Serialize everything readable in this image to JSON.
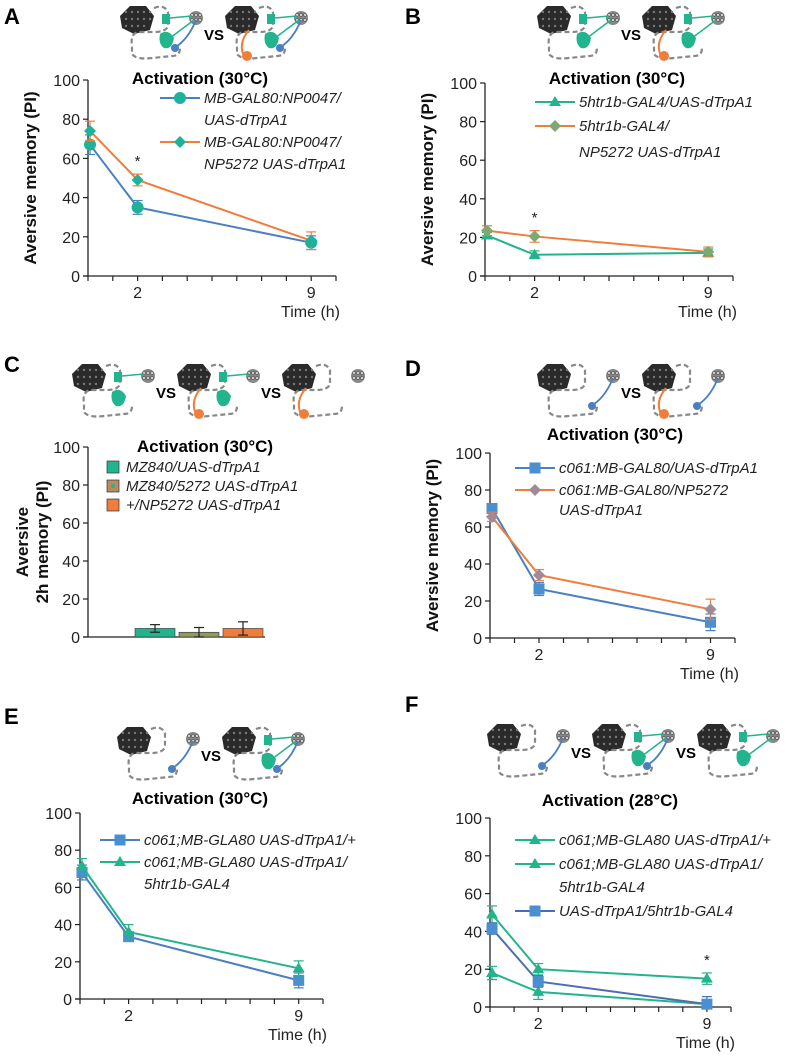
{
  "figure": {
    "colors": {
      "blue": "#4a7fc1",
      "orange": "#ef7d3c",
      "teal": "#22b48c",
      "tealMarker": "#1fb29a",
      "gray": "#888888",
      "axis": "#222222"
    },
    "vs_label": "VS"
  },
  "chart_data": [
    {
      "panel": "A",
      "type": "line",
      "title": "Activation (30°C)",
      "xlabel": "Time (h)",
      "ylabel": "Aversive memory (PI)",
      "ylim": [
        0,
        100
      ],
      "yticks": [
        0,
        20,
        40,
        60,
        80,
        100
      ],
      "xlim": [
        0,
        10
      ],
      "xticks": [
        2,
        9
      ],
      "x": [
        0,
        2,
        9
      ],
      "legend": "top-right",
      "schematic_count": 2,
      "series": [
        {
          "name": "MB-GAL80:NP0047/ UAS-dTrpA1",
          "legend_lines": [
            "MB-GAL80:NP0047/",
            "UAS-dTrpA1"
          ],
          "color": "#4a7fc1",
          "marker": "circle",
          "marker_color": "#1fb29a",
          "values": [
            67,
            35,
            17
          ],
          "errors": [
            5,
            3.5,
            3.5
          ]
        },
        {
          "name": "MB-GAL80:NP0047/ NP5272 UAS-dTrpA1",
          "legend_lines": [
            "MB-GAL80:NP0047/",
            "NP5272 UAS-dTrpA1"
          ],
          "color": "#ef7d3c",
          "marker": "diamond",
          "marker_color": "#1fb29a",
          "values": [
            74,
            49,
            18
          ],
          "errors": [
            5,
            3,
            4.5
          ]
        }
      ],
      "annotations": [
        {
          "x": 2,
          "text": "*"
        }
      ]
    },
    {
      "panel": "B",
      "type": "line",
      "title": "Activation (30°C)",
      "xlabel": "Time (h)",
      "ylabel": "Aversive memory (PI)",
      "ylim": [
        0,
        100
      ],
      "yticks": [
        0,
        20,
        40,
        60,
        80,
        100
      ],
      "xlim": [
        0,
        10
      ],
      "xticks": [
        2,
        9
      ],
      "x": [
        0,
        2,
        9
      ],
      "legend": "top-right",
      "schematic_count": 2,
      "series": [
        {
          "name": "5htr1b-GAL4/UAS-dTrpA1",
          "legend_lines": [
            "5htr1b-GAL4/UAS-dTrpA1"
          ],
          "color": "#22b48c",
          "marker": "triangle",
          "marker_color": "#22b48c",
          "values": [
            21,
            11,
            12
          ],
          "errors": [
            1.5,
            2,
            2
          ]
        },
        {
          "name": "5htr1b-GAL4/ NP5272 UAS-dTrpA1",
          "legend_lines": [
            "5htr1b-GAL4/",
            "NP5272 UAS-dTrpA1"
          ],
          "color": "#ef7d3c",
          "marker": "diamond",
          "marker_color": "#7fa870",
          "values": [
            23.5,
            20.5,
            12.5
          ],
          "errors": [
            2.5,
            3,
            2.5
          ]
        }
      ],
      "annotations": [
        {
          "x": 2,
          "text": "*"
        }
      ]
    },
    {
      "panel": "C",
      "type": "bar",
      "title": "Activation (30°C)",
      "ylabel": "Aversive 2h memory (PI)",
      "ylabel_lines": [
        "Aversive",
        "2h memory (PI)"
      ],
      "ylim": [
        0,
        100
      ],
      "yticks": [
        0,
        20,
        40,
        60,
        80,
        100
      ],
      "legend": "top",
      "schematic_count": 3,
      "categories": [
        "MZ840/UAS-dTrpA1",
        "MZ840/5272 UAS-dTrpA1",
        "+/NP5272 UAS-dTrpA1"
      ],
      "values": [
        4.5,
        2.5,
        4.5
      ],
      "errors": [
        2,
        2.5,
        3.5
      ],
      "colors": [
        "#22b48c",
        "#8f9a62",
        "#ef7d3c"
      ],
      "legend_entries": [
        {
          "label": "MZ840/UAS-dTrpA1",
          "color": "#22b48c"
        },
        {
          "label": "MZ840/5272 UAS-dTrpA1",
          "color": "#b88a5c"
        },
        {
          "label": "+/NP5272 UAS-dTrpA1",
          "color": "#ef7d3c"
        }
      ]
    },
    {
      "panel": "D",
      "type": "line",
      "title": "Activation (30°C)",
      "xlabel": "Time (h)",
      "ylabel": "Aversive memory (PI)",
      "ylim": [
        0,
        100
      ],
      "yticks": [
        0,
        20,
        40,
        60,
        80,
        100
      ],
      "xlim": [
        0,
        10
      ],
      "xticks": [
        2,
        9
      ],
      "x": [
        0,
        2,
        9
      ],
      "legend": "top-right",
      "schematic_count": 2,
      "series": [
        {
          "name": "c061:MB-GAL80/UAS-dTrpA1",
          "legend_lines": [
            "c061:MB-GAL80/UAS-dTrpA1"
          ],
          "color": "#4a7fc1",
          "marker": "square",
          "marker_color": "#4a8fd0",
          "values": [
            70,
            26.5,
            8.5
          ],
          "errors": [
            2.5,
            3.5,
            4.5
          ]
        },
        {
          "name": "c061:MB-GAL80/NP5272 UAS-dTrpA1",
          "legend_lines": [
            "c061:MB-GAL80/NP5272",
            "UAS-dTrpA1"
          ],
          "color": "#ef7d3c",
          "marker": "diamond",
          "marker_color": "#a08a96",
          "values": [
            65.5,
            34,
            15.5
          ],
          "errors": [
            2.5,
            3,
            5.5
          ]
        }
      ],
      "annotations": []
    },
    {
      "panel": "E",
      "type": "line",
      "title": "Activation (30°C)",
      "xlabel": "Time (h)",
      "ylabel": "",
      "ylim": [
        0,
        100
      ],
      "yticks": [
        0,
        20,
        40,
        60,
        80,
        100
      ],
      "xlim": [
        0,
        10
      ],
      "xticks": [
        2,
        9
      ],
      "x": [
        0,
        2,
        9
      ],
      "legend": "top-right",
      "schematic_count": 2,
      "series": [
        {
          "name": "c061;MB-GLA80 UAS-dTrpA1/+",
          "legend_lines": [
            "c061;MB-GLA80 UAS-dTrpA1/+"
          ],
          "color": "#4a7fc1",
          "marker": "square",
          "marker_color": "#4a8fd0",
          "values": [
            68,
            33.5,
            10
          ],
          "errors": [
            4,
            2.5,
            4
          ]
        },
        {
          "name": "c061;MB-GLA80 UAS-dTrpA1/ 5htr1b-GAL4",
          "legend_lines": [
            "c061;MB-GLA80 UAS-dTrpA1/",
            "5htr1b-GAL4"
          ],
          "color": "#22b48c",
          "marker": "triangle",
          "marker_color": "#22b48c",
          "values": [
            71.5,
            36,
            16.5
          ],
          "errors": [
            4,
            4,
            4
          ]
        }
      ],
      "annotations": []
    },
    {
      "panel": "F",
      "type": "line",
      "title": "Activation (28°C)",
      "xlabel": "Time (h)",
      "ylabel": "",
      "ylim": [
        0,
        100
      ],
      "yticks": [
        0,
        20,
        40,
        60,
        80,
        100
      ],
      "xlim": [
        0,
        10
      ],
      "xticks": [
        2,
        9
      ],
      "x": [
        0,
        2,
        9
      ],
      "legend": "top-right",
      "schematic_count": 3,
      "series": [
        {
          "name": "c061;MB-GLA80 UAS-dTrpA1/+",
          "legend_lines": [
            "c061;MB-GLA80 UAS-dTrpA1/+"
          ],
          "color": "#22b48c",
          "marker": "triangle",
          "marker_color": "#22b48c",
          "values": [
            18,
            8,
            1.5
          ],
          "errors": [
            3.5,
            4,
            2
          ]
        },
        {
          "name": "c061;MB-GLA80 UAS-dTrpA1/ 5htr1b-GAL4",
          "legend_lines": [
            "c061;MB-GLA80 UAS-dTrpA1/",
            "5htr1b-GAL4"
          ],
          "color": "#22b48c",
          "marker": "triangle",
          "marker_color": "#22b48c",
          "values": [
            49,
            20,
            15
          ],
          "errors": [
            4.5,
            3,
            3
          ]
        },
        {
          "name": "UAS-dTrpA1/5htr1b-GAL4",
          "legend_lines": [
            "UAS-dTrpA1/5htr1b-GAL4"
          ],
          "color": "#4a6fb0",
          "marker": "square",
          "marker_color": "#4a8fd0",
          "values": [
            41.5,
            13.5,
            1.5
          ],
          "errors": [
            3,
            3,
            4
          ]
        }
      ],
      "annotations": [
        {
          "x": 9,
          "text": "*"
        }
      ]
    }
  ]
}
